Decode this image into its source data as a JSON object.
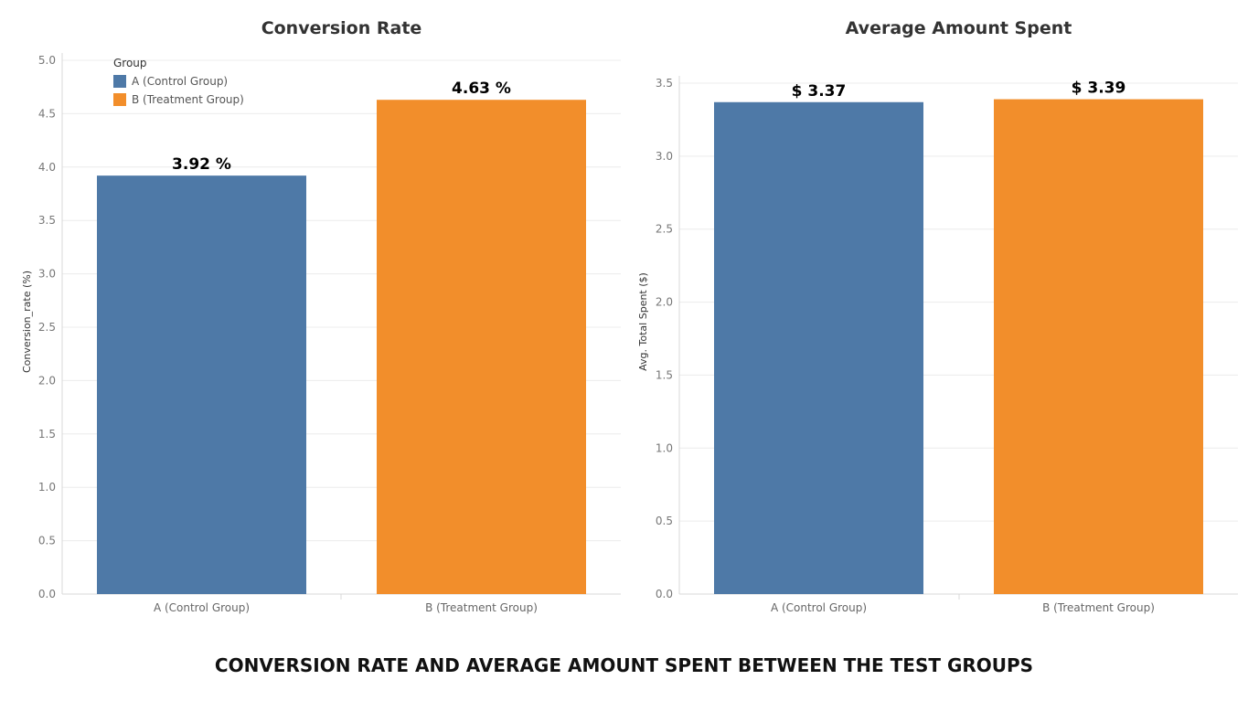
{
  "footer_title": "CONVERSION RATE AND AVERAGE AMOUNT SPENT BETWEEN THE TEST GROUPS",
  "legend": {
    "title": "Group",
    "items": [
      {
        "label": "A (Control Group)",
        "color": "#4e79a7"
      },
      {
        "label": "B (Treatment Group)",
        "color": "#f28e2b"
      }
    ]
  },
  "chart_data": [
    {
      "type": "bar",
      "title": "Conversion Rate",
      "ylabel": "Conversion_rate (%)",
      "xlabel": "",
      "categories": [
        "A (Control Group)",
        "B (Treatment Group)"
      ],
      "values": [
        3.92,
        4.63
      ],
      "data_labels": [
        "3.92 %",
        "4.63 %"
      ],
      "colors": [
        "#4e79a7",
        "#f28e2b"
      ],
      "ylim": [
        0,
        5.0
      ],
      "yticks": [
        "0.0",
        "0.5",
        "1.0",
        "1.5",
        "2.0",
        "2.5",
        "3.0",
        "3.5",
        "4.0",
        "4.5",
        "5.0"
      ],
      "grid": true,
      "legend_position": "top-left"
    },
    {
      "type": "bar",
      "title": "Average Amount Spent",
      "ylabel": "Avg. Total Spent ($)",
      "xlabel": "",
      "categories": [
        "A (Control Group)",
        "B (Treatment Group)"
      ],
      "values": [
        3.37,
        3.39
      ],
      "data_labels": [
        "$ 3.37",
        "$ 3.39"
      ],
      "colors": [
        "#4e79a7",
        "#f28e2b"
      ],
      "ylim": [
        0,
        3.5
      ],
      "yticks": [
        "0.0",
        "0.5",
        "1.0",
        "1.5",
        "2.0",
        "2.5",
        "3.0",
        "3.5"
      ],
      "grid": true
    }
  ]
}
